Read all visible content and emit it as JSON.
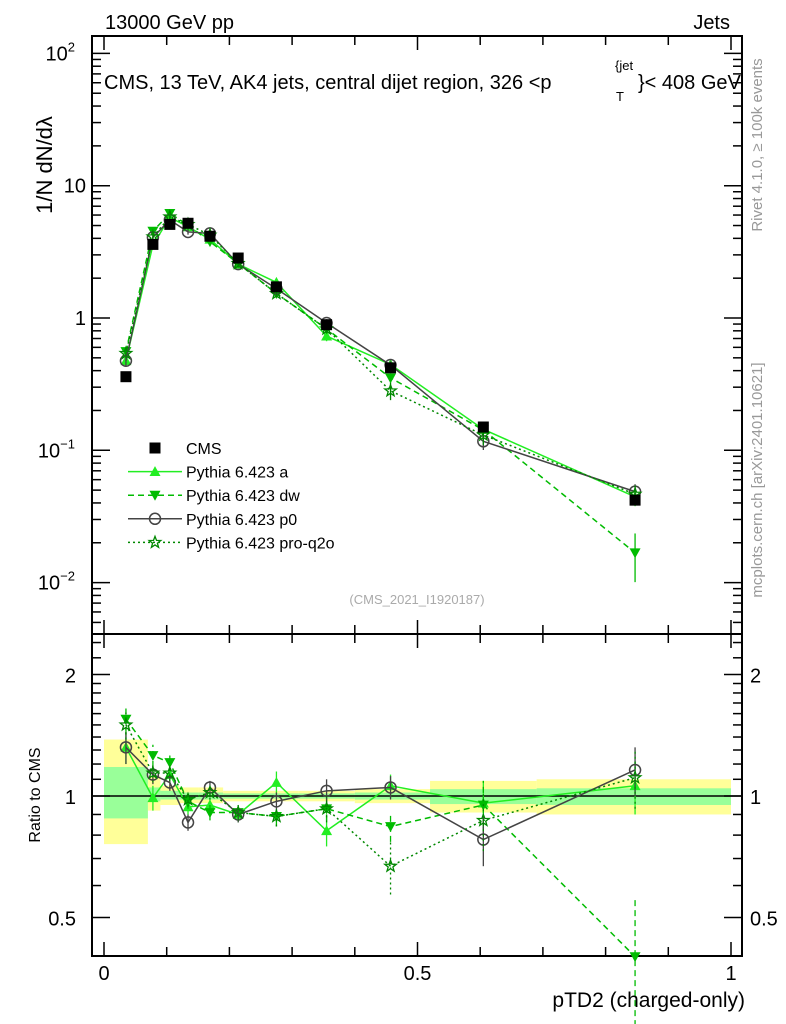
{
  "header": {
    "left": "13000 GeV pp",
    "right": "Jets",
    "plot_title": "CMS, 13 TeV, AK4 jets, central dijet region, 326 <p",
    "plot_title_sub": "T",
    "plot_title_sup": "{jet",
    "plot_title_end": "}< 408 GeV",
    "side_rivet": "Rivet 4.1.0, ≥ 100k events",
    "side_mcplots": "mcplots.cern.ch [arXiv:2401.10621]",
    "analysis_id": "(CMS_2021_I1920187)"
  },
  "chart_data": {
    "type": "scatter",
    "title": "CMS, 13 TeV, AK4 jets, central dijet region, 326 < pT{jet} < 408 GeV",
    "xlabel": "pTD2 (charged-only)",
    "ylabel": "1/N dN/dλ",
    "ratio_ylabel": "Ratio to CMS",
    "xlim": [
      0,
      1
    ],
    "ylim": [
      0.004,
      135
    ],
    "yscale": "log",
    "ratio_ylim": [
      0.4,
      2.5
    ],
    "x_tick_labels": [
      "0",
      "0.5",
      "1"
    ],
    "y_tick_labels": [
      {
        "v": 0.01,
        "base": "10",
        "exp": "−2"
      },
      {
        "v": 0.1,
        "base": "10",
        "exp": "−1"
      },
      {
        "v": 1,
        "base": "1",
        "exp": ""
      },
      {
        "v": 10,
        "base": "10",
        "exp": ""
      },
      {
        "v": 100,
        "base": "10",
        "exp": "2"
      }
    ],
    "ratio_tick_labels": [
      "0.5",
      "1",
      "2"
    ],
    "legend_position": "lower-left",
    "bin_edges": [
      0,
      0.07,
      0.09,
      0.12,
      0.15,
      0.19,
      0.24,
      0.31,
      0.4,
      0.52,
      0.69,
      1.0
    ],
    "x": [
      0.035,
      0.078,
      0.105,
      0.134,
      0.169,
      0.214,
      0.275,
      0.355,
      0.457,
      0.605,
      0.847
    ],
    "data": {
      "name": "CMS",
      "values": [
        0.36,
        3.6,
        5.1,
        5.2,
        4.15,
        2.84,
        1.72,
        0.89,
        0.42,
        0.15,
        0.042
      ],
      "band_total": [
        [
          0.76,
          1.38
        ],
        [
          0.92,
          1.12
        ],
        [
          0.95,
          1.06
        ],
        [
          0.96,
          1.05
        ],
        [
          0.96,
          1.05
        ],
        [
          0.97,
          1.03
        ],
        [
          0.97,
          1.03
        ],
        [
          0.97,
          1.03
        ],
        [
          0.96,
          1.04
        ],
        [
          0.91,
          1.09
        ],
        [
          0.9,
          1.1
        ]
      ],
      "band_stat": [
        [
          0.88,
          1.18
        ],
        [
          0.97,
          1.05
        ],
        [
          0.98,
          1.03
        ],
        [
          0.98,
          1.02
        ],
        [
          0.98,
          1.02
        ],
        [
          0.985,
          1.015
        ],
        [
          0.985,
          1.015
        ],
        [
          0.985,
          1.015
        ],
        [
          0.98,
          1.02
        ],
        [
          0.955,
          1.04
        ],
        [
          0.95,
          1.045
        ]
      ]
    },
    "series": [
      {
        "name": "Pythia 6.423 a",
        "color": "#22ee22",
        "marker": "triangle-up",
        "dash": "",
        "ratio": [
          1.32,
          0.99,
          1.13,
          0.94,
          0.95,
          0.9,
          1.08,
          0.82,
          1.06,
          0.96,
          1.06
        ],
        "ratio_err": [
          0.12,
          0.07,
          0.05,
          0.04,
          0.04,
          0.04,
          0.07,
          0.07,
          0.07,
          0.13,
          0.16
        ]
      },
      {
        "name": "Pythia 6.423 dw",
        "color": "#00bb00",
        "marker": "triangle-down",
        "dash": "6,4",
        "ratio": [
          1.55,
          1.26,
          1.21,
          0.97,
          0.91,
          0.91,
          0.89,
          0.93,
          0.84,
          0.95,
          0.4
        ],
        "ratio_err": [
          0.13,
          0.08,
          0.06,
          0.04,
          0.04,
          0.04,
          0.05,
          0.06,
          0.07,
          0.14,
          0.16
        ]
      },
      {
        "name": "Pythia 6.423 p0",
        "color": "#444444",
        "marker": "circle",
        "dash": "",
        "ratio": [
          1.32,
          1.13,
          1.08,
          0.86,
          1.05,
          0.9,
          0.97,
          1.03,
          1.05,
          0.78,
          1.16
        ],
        "ratio_err": [
          0.12,
          0.06,
          0.05,
          0.04,
          0.04,
          0.04,
          0.05,
          0.07,
          0.07,
          0.11,
          0.16
        ]
      },
      {
        "name": "Pythia 6.423 pro-q2o",
        "color": "#008800",
        "marker": "star",
        "dash": "2,3",
        "ratio": [
          1.5,
          1.14,
          1.14,
          0.98,
          1.02,
          0.91,
          0.89,
          0.93,
          0.67,
          0.87,
          1.11
        ],
        "ratio_err": [
          0.12,
          0.06,
          0.05,
          0.04,
          0.04,
          0.04,
          0.05,
          0.07,
          0.1,
          0.14,
          0.18
        ]
      }
    ]
  }
}
